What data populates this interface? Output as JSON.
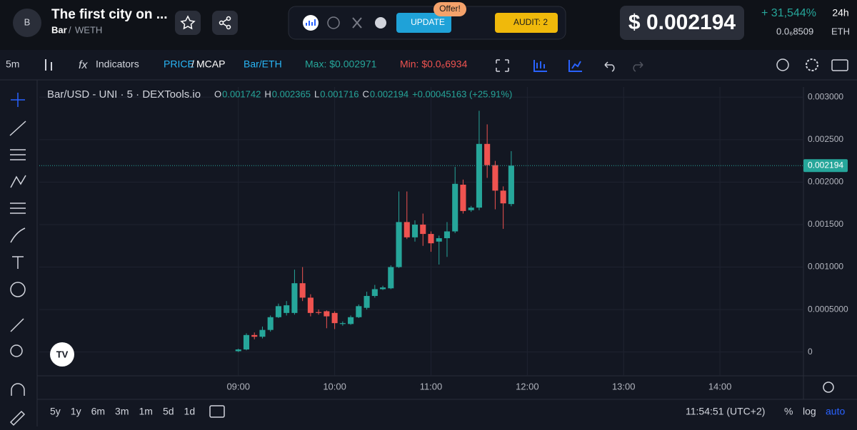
{
  "header": {
    "avatar": "B",
    "title": "The first city on ...",
    "pair_base": "Bar",
    "pair_quote": "WETH",
    "offer": "Offer!",
    "update": "UPDATE",
    "audit": "AUDIT: 2",
    "price": "$ 0.002194",
    "change": "+ 31,544%",
    "period": "24h",
    "eth_price": "0.0₆8509",
    "eth": "ETH"
  },
  "toolbar": {
    "interval": "5m",
    "indicators": "Indicators",
    "price": "PRICE",
    "mcap": "MCAP",
    "pair": "Bar/ETH",
    "max": "Max: $0.002971",
    "min": "Min: $0.0₆6934"
  },
  "legend": {
    "symbol": "Bar/USD - UNI · 5 · DEXTools.io",
    "items": [
      {
        "key": "O",
        "value": "0.001742"
      },
      {
        "key": "H",
        "value": "0.002365"
      },
      {
        "key": "L",
        "value": "0.001716"
      },
      {
        "key": "C",
        "value": "0.002194"
      }
    ],
    "change": "+0.00045163 (+25.91%)"
  },
  "footer": {
    "ranges": [
      "5y",
      "1y",
      "6m",
      "3m",
      "1m",
      "5d",
      "1d"
    ],
    "clock": "11:54:51 (UTC+2)",
    "percent": "%",
    "log": "log",
    "auto": "auto"
  },
  "chart_data": {
    "type": "candlestick",
    "up_color": "#26a69a",
    "down_color": "#ef5350",
    "x": [
      "09:00",
      "09:05",
      "09:10",
      "09:15",
      "09:20",
      "09:25",
      "09:30",
      "09:35",
      "09:40",
      "09:45",
      "09:50",
      "09:55",
      "10:00",
      "10:05",
      "10:10",
      "10:15",
      "10:20",
      "10:25",
      "10:30",
      "10:35",
      "10:40",
      "10:45",
      "10:50",
      "10:55",
      "11:00",
      "11:05",
      "11:10",
      "11:15",
      "11:20",
      "11:25",
      "11:30",
      "11:35",
      "11:40",
      "11:45",
      "11:50"
    ],
    "open": [
      1e-05,
      3e-05,
      0.0002,
      0.00018,
      0.00026,
      0.00041,
      0.00046,
      0.00046,
      0.00081,
      0.00064,
      0.00047,
      0.00048,
      0.00046,
      0.00033,
      0.00033,
      0.00041,
      0.00052,
      0.00066,
      0.00074,
      0.00075,
      0.001,
      0.00153,
      0.00135,
      0.0015,
      0.00139,
      0.0013,
      0.00134,
      0.00142,
      0.00197,
      0.00167,
      0.0017,
      0.00245,
      0.0022,
      0.0019,
      0.001742
    ],
    "high": [
      4e-05,
      0.00022,
      0.00023,
      0.0003,
      0.00043,
      0.00057,
      0.0006,
      0.00097,
      0.001,
      0.00068,
      0.0005,
      0.00049,
      0.00048,
      0.00036,
      0.00043,
      0.00056,
      0.00071,
      0.00079,
      0.00078,
      0.00102,
      0.00189,
      0.00189,
      0.00155,
      0.00163,
      0.00142,
      0.00137,
      0.00153,
      0.00218,
      0.00203,
      0.00172,
      0.00284,
      0.00268,
      0.00225,
      0.00195,
      0.002365
    ],
    "low": [
      0.0,
      2e-05,
      0.00015,
      0.00016,
      0.00024,
      0.0004,
      0.00043,
      0.00044,
      0.0006,
      0.00042,
      0.00044,
      0.00028,
      0.00027,
      0.00031,
      0.00032,
      0.0004,
      0.0005,
      0.00064,
      0.00073,
      0.00074,
      0.00099,
      0.00133,
      0.0013,
      0.00125,
      0.00118,
      0.00103,
      0.00112,
      0.0014,
      0.00163,
      0.00165,
      0.00167,
      0.00205,
      0.00168,
      0.00145,
      0.001716
    ],
    "close": [
      3e-05,
      0.0002,
      0.00018,
      0.00026,
      0.00041,
      0.00054,
      0.00055,
      0.00081,
      0.00064,
      0.00046,
      0.00046,
      0.00042,
      0.00034,
      0.00034,
      0.00041,
      0.00054,
      0.00066,
      0.00074,
      0.00076,
      0.001,
      0.00153,
      0.00135,
      0.0015,
      0.00139,
      0.00128,
      0.00134,
      0.00142,
      0.00198,
      0.00166,
      0.0017,
      0.00245,
      0.0022,
      0.0019,
      0.00175,
      0.002194
    ],
    "xlim": [
      "06:56",
      "14:52"
    ],
    "xticks": [
      "09:00",
      "10:00",
      "11:00",
      "12:00",
      "13:00",
      "14:00"
    ],
    "ylim": [
      -0.00028,
      0.00312
    ],
    "yticks": [
      0,
      {
        "value": 0.0005,
        "label": "0.0005000"
      },
      {
        "value": 0.001,
        "label": "0.001000"
      },
      {
        "value": 0.0015,
        "label": "0.001500"
      },
      {
        "value": 0.002,
        "label": "0.002000"
      },
      {
        "value": 0.0025,
        "label": "0.002500"
      },
      {
        "value": 0.003,
        "label": "0.003000"
      }
    ],
    "last_price": {
      "value": 0.002194,
      "label": "0.002194"
    },
    "grid": true
  }
}
